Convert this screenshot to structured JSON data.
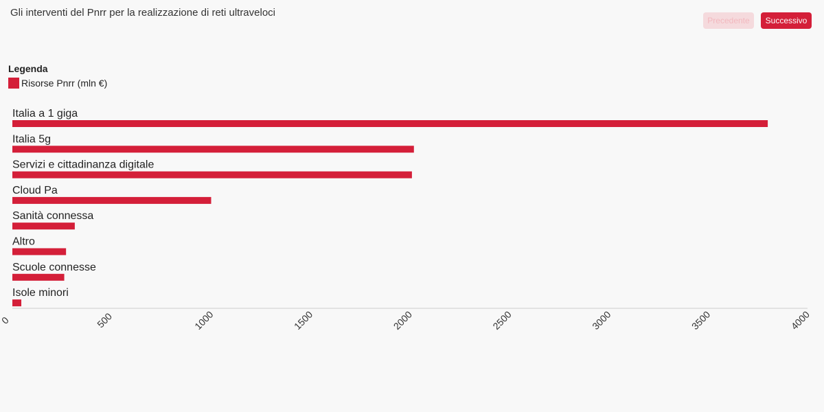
{
  "header": {
    "title": "Gli interventi del Pnrr per la realizzazione di reti ultraveloci"
  },
  "nav": {
    "prev_label": "Precedente",
    "next_label": "Successivo"
  },
  "legend": {
    "title": "Legenda",
    "items": [
      {
        "label": "Risorse Pnrr (mln €)",
        "color": "#d41f39"
      }
    ]
  },
  "chart_data": {
    "type": "bar",
    "orientation": "horizontal",
    "categories": [
      "Italia a 1 giga",
      "Italia 5g",
      "Servizi e cittadinanza digitale",
      "Cloud Pa",
      "Sanità connessa",
      "Altro",
      "Scuole connesse",
      "Isole minori"
    ],
    "series": [
      {
        "name": "Risorse Pnrr (mln €)",
        "color": "#d41f39",
        "values": [
          3800,
          2020,
          2010,
          1000,
          314,
          270,
          261,
          45
        ]
      }
    ],
    "xlim": [
      0,
      4000
    ],
    "xticks": [
      "0",
      "500",
      "1000",
      "1500",
      "2000",
      "2500",
      "3000",
      "3500",
      "4000"
    ],
    "grid": false,
    "legend_position": "top-left"
  }
}
